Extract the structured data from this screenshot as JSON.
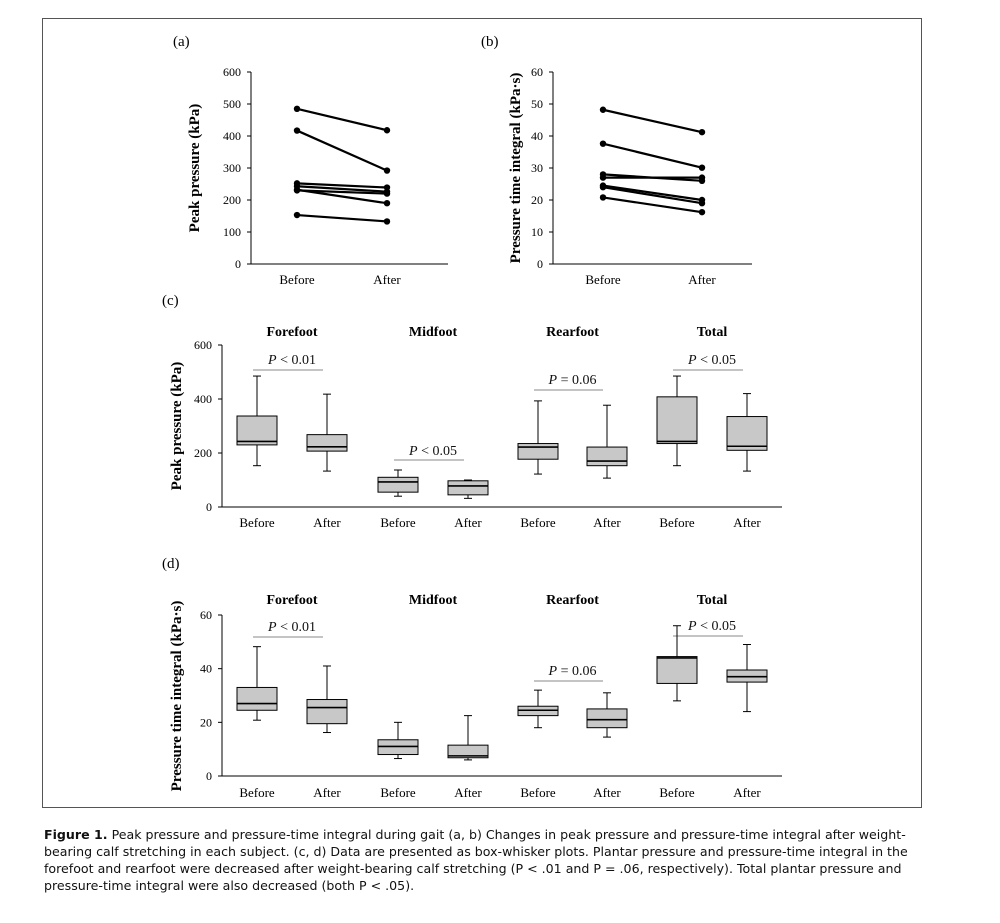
{
  "chart_data": [
    {
      "panel": "(a)",
      "type": "line",
      "ylabel": "Peak pressure (kPa)",
      "ylim": [
        0,
        600
      ],
      "yticks": [
        0,
        100,
        200,
        300,
        400,
        500,
        600
      ],
      "categories": [
        "Before",
        "After"
      ],
      "series": [
        {
          "values": [
            485,
            418
          ]
        },
        {
          "values": [
            417,
            292
          ]
        },
        {
          "values": [
            252,
            239
          ]
        },
        {
          "values": [
            243,
            226
          ]
        },
        {
          "values": [
            232,
            190
          ]
        },
        {
          "values": [
            230,
            220
          ]
        },
        {
          "values": [
            153,
            133
          ]
        }
      ]
    },
    {
      "panel": "(b)",
      "type": "line",
      "ylabel": "Pressure time integral (kPa·s)",
      "ylim": [
        0,
        60
      ],
      "yticks": [
        0,
        10,
        20,
        30,
        40,
        50,
        60
      ],
      "categories": [
        "Before",
        "After"
      ],
      "series": [
        {
          "values": [
            48.2,
            41.2
          ]
        },
        {
          "values": [
            37.6,
            30.1
          ]
        },
        {
          "values": [
            28.0,
            26.0
          ]
        },
        {
          "values": [
            27.0,
            27.0
          ]
        },
        {
          "values": [
            24.5,
            20.0
          ]
        },
        {
          "values": [
            24.0,
            19.0
          ]
        },
        {
          "values": [
            20.8,
            16.2
          ]
        }
      ]
    },
    {
      "panel": "(c)",
      "type": "box",
      "ylabel": "Peak pressure (kPa)",
      "ylim": [
        0,
        600
      ],
      "yticks": [
        0,
        200,
        400,
        600
      ],
      "groups": [
        {
          "name": "Forefoot",
          "p_label": "P < 0.01",
          "boxes": [
            {
              "label": "Before",
              "min": 153,
              "q1": 230,
              "median": 243,
              "q3": 337,
              "max": 485
            },
            {
              "label": "After",
              "min": 133,
              "q1": 207,
              "median": 223,
              "q3": 268,
              "max": 418
            }
          ]
        },
        {
          "name": "Midfoot",
          "p_label": "P < 0.05",
          "boxes": [
            {
              "label": "Before",
              "min": 40,
              "q1": 55,
              "median": 93,
              "q3": 110,
              "max": 137
            },
            {
              "label": "After",
              "min": 32,
              "q1": 45,
              "median": 78,
              "q3": 97,
              "max": 100
            }
          ]
        },
        {
          "name": "Rearfoot",
          "p_label": "P = 0.06",
          "boxes": [
            {
              "label": "Before",
              "min": 122,
              "q1": 177,
              "median": 222,
              "q3": 235,
              "max": 393
            },
            {
              "label": "After",
              "min": 107,
              "q1": 153,
              "median": 170,
              "q3": 222,
              "max": 377
            }
          ]
        },
        {
          "name": "Total",
          "p_label": "P < 0.05",
          "boxes": [
            {
              "label": "Before",
              "min": 153,
              "q1": 235,
              "median": 243,
              "q3": 408,
              "max": 485
            },
            {
              "label": "After",
              "min": 133,
              "q1": 210,
              "median": 225,
              "q3": 335,
              "max": 420
            }
          ]
        }
      ]
    },
    {
      "panel": "(d)",
      "type": "box",
      "ylabel": "Pressure time integral (kPa·s)",
      "ylim": [
        0,
        60
      ],
      "yticks": [
        0,
        20,
        40,
        60
      ],
      "groups": [
        {
          "name": "Forefoot",
          "p_label": "P < 0.01",
          "boxes": [
            {
              "label": "Before",
              "min": 20.8,
              "q1": 24.5,
              "median": 27.0,
              "q3": 33.0,
              "max": 48.2
            },
            {
              "label": "After",
              "min": 16.2,
              "q1": 19.5,
              "median": 25.5,
              "q3": 28.5,
              "max": 41.0
            }
          ]
        },
        {
          "name": "Midfoot",
          "p_label": "",
          "boxes": [
            {
              "label": "Before",
              "min": 6.5,
              "q1": 8.0,
              "median": 11.0,
              "q3": 13.5,
              "max": 20.0
            },
            {
              "label": "After",
              "min": 6.0,
              "q1": 6.8,
              "median": 7.5,
              "q3": 11.5,
              "max": 22.5
            }
          ]
        },
        {
          "name": "Rearfoot",
          "p_label": "P = 0.06",
          "boxes": [
            {
              "label": "Before",
              "min": 18.0,
              "q1": 22.5,
              "median": 24.5,
              "q3": 26.0,
              "max": 32.0
            },
            {
              "label": "After",
              "min": 14.5,
              "q1": 18.0,
              "median": 21.0,
              "q3": 25.0,
              "max": 31.0
            }
          ]
        },
        {
          "name": "Total",
          "p_label": "P < 0.05",
          "boxes": [
            {
              "label": "Before",
              "min": 28.0,
              "q1": 34.5,
              "median": 44.0,
              "q3": 44.5,
              "max": 56.0
            },
            {
              "label": "After",
              "min": 24.0,
              "q1": 35.0,
              "median": 37.0,
              "q3": 39.5,
              "max": 49.0
            }
          ]
        }
      ]
    }
  ],
  "caption": {
    "figure_label": "Figure 1.",
    "text": " Peak pressure and pressure-time integral during gait (a, b) Changes in peak pressure and pressure-time integral after weight-bearing calf stretching in each subject. (c, d) Data are presented as box-whisker plots. Plantar pressure and pressure-time integral in the forefoot and rearfoot were decreased after weight-bearing calf stretching (P < .01 and P = .06, respectively). Total plantar pressure and pressure-time integral were also decreased (both P < .05)."
  },
  "colors": {
    "box_fill": "#c8c8c8",
    "line": "#000000",
    "bracket": "#888888"
  }
}
